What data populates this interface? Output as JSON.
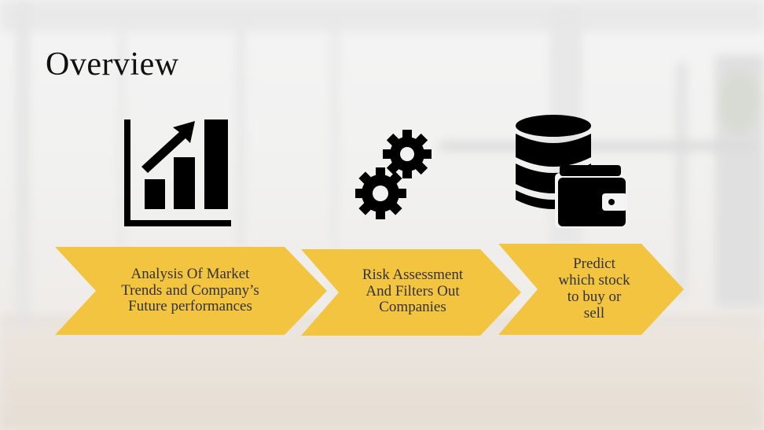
{
  "slide": {
    "title": "Overview",
    "accent_color": "#f2c440",
    "steps": [
      {
        "label": "Analysis Of Market\nTrends and Company’s\nFuture performances",
        "icon": "bar-chart-growth-icon"
      },
      {
        "label": "Risk Assessment\nAnd Filters Out\nCompanies",
        "icon": "gears-icon"
      },
      {
        "label": "Predict\nwhich stock\nto buy or\nsell",
        "icon": "database-wallet-icon"
      }
    ]
  }
}
